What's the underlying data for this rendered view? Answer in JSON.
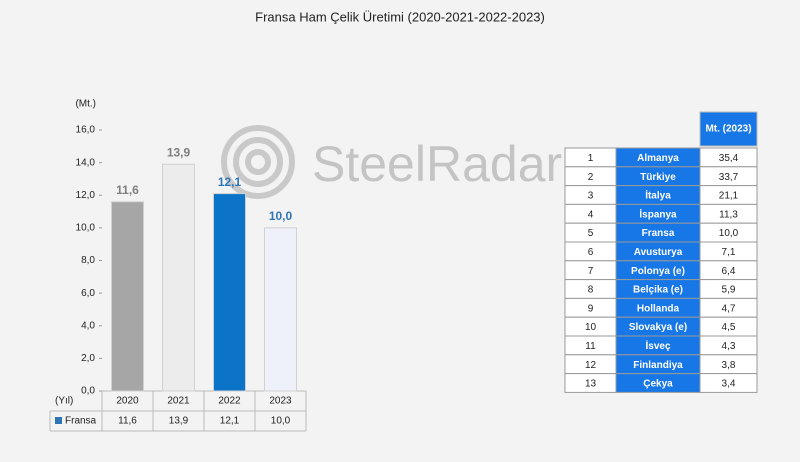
{
  "chart_data": {
    "type": "bar",
    "title": "Fransa Ham Çelik Üretimi (2020-2021-2022-2023)",
    "y_label": "(Mt.)",
    "x_label": "(Yıl)",
    "categories": [
      "2020",
      "2021",
      "2022",
      "2023"
    ],
    "series": [
      {
        "name": "Fransa",
        "color": "#2e75b6",
        "values": [
          11.6,
          13.9,
          12.1,
          10.0
        ],
        "value_labels": [
          "11,6",
          "13,9",
          "12,1",
          "10,0"
        ],
        "bar_colors": [
          "#a6a6a6",
          "#ececec",
          "#0b74c8",
          "#eef0fa"
        ],
        "label_colors": [
          "#7f7f7f",
          "#7f7f7f",
          "#2e75b6",
          "#2e75b6"
        ]
      }
    ],
    "ylim": [
      0,
      16
    ],
    "yticks": [
      {
        "value": 0,
        "label": "0,0"
      },
      {
        "value": 2,
        "label": "2,0"
      },
      {
        "value": 4,
        "label": "4,0"
      },
      {
        "value": 6,
        "label": "6,0"
      },
      {
        "value": 8,
        "label": "8,0"
      },
      {
        "value": 10,
        "label": "10,0"
      },
      {
        "value": 12,
        "label": "12,0"
      },
      {
        "value": 14,
        "label": "14,0"
      },
      {
        "value": 16,
        "label": "16,0"
      }
    ]
  },
  "watermark": "SteelRadar",
  "table": {
    "header": "Mt. (2023)",
    "rows": [
      [
        "1",
        "Almanya",
        "35,4"
      ],
      [
        "2",
        "Türkiye",
        "33,7"
      ],
      [
        "3",
        "İtalya",
        "21,1"
      ],
      [
        "4",
        "İspanya",
        "11,3"
      ],
      [
        "5",
        "Fransa",
        "10,0"
      ],
      [
        "6",
        "Avusturya",
        "7,1"
      ],
      [
        "7",
        "Polonya (e)",
        "6,4"
      ],
      [
        "8",
        "Belçika (e)",
        "5,9"
      ],
      [
        "9",
        "Hollanda",
        "4,7"
      ],
      [
        "10",
        "Slovakya (e)",
        "4,5"
      ],
      [
        "11",
        "İsveç",
        "4,3"
      ],
      [
        "12",
        "Finlandiya",
        "3,8"
      ],
      [
        "13",
        "Çekya",
        "3,4"
      ]
    ]
  }
}
